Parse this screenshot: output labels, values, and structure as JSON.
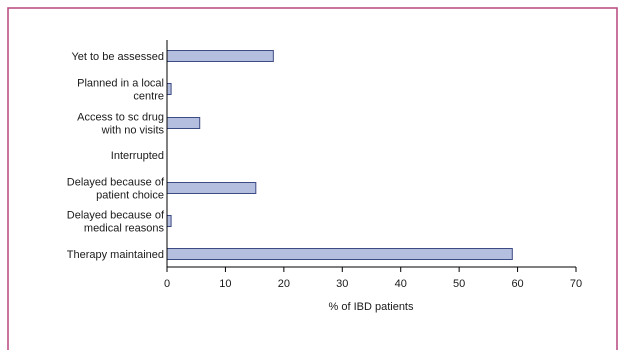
{
  "colors": {
    "frame": "#b5467f",
    "bar_fill": "#b4bede",
    "bar_stroke": "#3d4b84",
    "axis": "#000000"
  },
  "chart_data": {
    "type": "bar",
    "orientation": "horizontal",
    "categories": [
      [
        "Yet to be assessed"
      ],
      [
        "Planned in a local",
        "centre"
      ],
      [
        "Access to sc drug",
        "with no visits"
      ],
      [
        "Interrupted"
      ],
      [
        "Delayed because of",
        "patient choice"
      ],
      [
        "Delayed because of",
        "medical reasons"
      ],
      [
        "Therapy maintained"
      ]
    ],
    "values": [
      18.2,
      0.7,
      5.6,
      0,
      15.2,
      0.7,
      59.1
    ],
    "xlabel": "% of IBD patients",
    "xlim": [
      0,
      70
    ],
    "xticks": [
      "0",
      "10",
      "20",
      "30",
      "40",
      "50",
      "60",
      "70"
    ],
    "grid": false,
    "legend": "none"
  }
}
